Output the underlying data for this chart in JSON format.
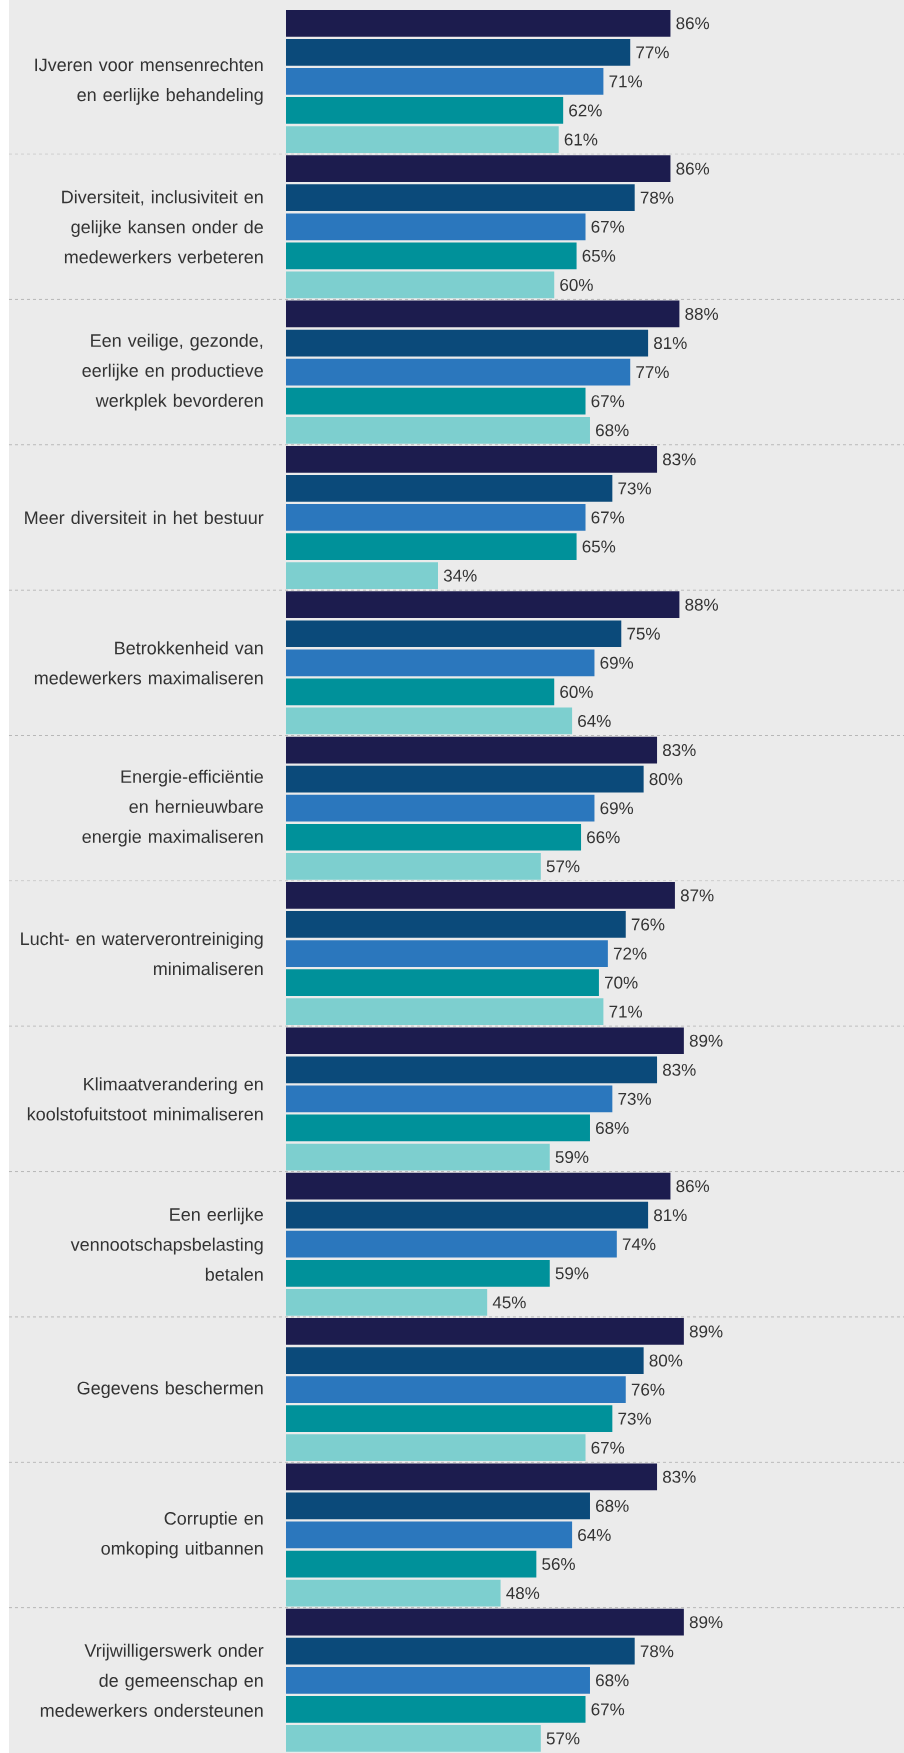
{
  "chart_data": {
    "type": "bar",
    "orientation": "horizontal",
    "categories": [
      "IJveren voor mensenrechten en eerlijke behandeling",
      "Diversiteit, inclusiviteit en gelijke kansen onder de medewerkers verbeteren",
      "Een veilige, gezonde, eerlijke en productieve werkplek bevorderen",
      "Meer diversiteit in het bestuur",
      "Betrokkenheid van medewerkers maximaliseren",
      "Energie-efficiëntie en hernieuwbare energie maximaliseren",
      "Lucht- en waterverontreiniging minimaliseren",
      "Klimaatverandering en koolstofuitstoot minimaliseren",
      "Een eerlijke vennootschapsbelasting betalen",
      "Gegevens beschermen",
      "Corruptie en omkoping uitbannen",
      "Vrijwilligerswerk onder de gemeenschap en medewerkers ondersteunen"
    ],
    "series": [
      {
        "color": "#1c1c4e",
        "values": [
          86,
          86,
          88,
          83,
          88,
          83,
          87,
          89,
          86,
          89,
          83,
          89
        ],
        "value_labels": [
          "86%",
          "86%",
          "88%",
          "83%",
          "88%",
          "83%",
          "87%",
          "89%",
          "86%",
          "89%",
          "83%",
          "89%"
        ]
      },
      {
        "color": "#0b4a7a",
        "values": [
          77,
          78,
          81,
          73,
          75,
          80,
          76,
          83,
          81,
          80,
          68,
          78
        ],
        "value_labels": [
          "77%",
          "78%",
          "81%",
          "73%",
          "75%",
          "80%",
          "76%",
          "83%",
          "81%",
          "80%",
          "68%",
          "78%"
        ]
      },
      {
        "color": "#2b77bd",
        "values": [
          71,
          67,
          77,
          67,
          69,
          69,
          72,
          73,
          74,
          76,
          64,
          68
        ],
        "value_labels": [
          "71%",
          "67%",
          "77%",
          "67%",
          "69%",
          "69%",
          "72%",
          "73%",
          "74%",
          "76%",
          "64%",
          "68%"
        ]
      },
      {
        "color": "#00919a",
        "values": [
          62,
          65,
          67,
          65,
          60,
          66,
          70,
          68,
          59,
          73,
          56,
          67
        ],
        "value_labels": [
          "62%",
          "65%",
          "67%",
          "65%",
          "60%",
          "66%",
          "70%",
          "68%",
          "59%",
          "73%",
          "56%",
          "67%"
        ]
      },
      {
        "color": "#7dcfcf",
        "values": [
          61,
          60,
          68,
          34,
          64,
          57,
          71,
          59,
          45,
          67,
          48,
          57
        ],
        "value_labels": [
          "61%",
          "60%",
          "68%",
          "34%",
          "64%",
          "57%",
          "71%",
          "59%",
          "45%",
          "67%",
          "48%",
          "57%"
        ]
      }
    ]
  }
}
